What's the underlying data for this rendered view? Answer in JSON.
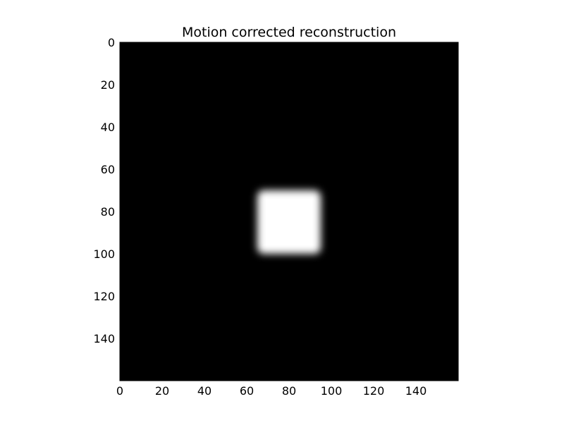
{
  "chart_data": {
    "type": "heatmap",
    "title": "Motion corrected reconstruction",
    "xlabel": "",
    "ylabel": "",
    "colormap": "gray",
    "image_shape": [
      160,
      160
    ],
    "xlim": [
      0,
      160
    ],
    "ylim": [
      160,
      0
    ],
    "x_ticks": [
      0,
      20,
      40,
      60,
      80,
      100,
      120,
      140
    ],
    "y_ticks": [
      0,
      20,
      40,
      60,
      80,
      100,
      120,
      140
    ],
    "grid": false,
    "background_value": 0.0,
    "bright_region": {
      "shape": "rounded-square",
      "x_range": [
        65,
        95
      ],
      "y_range": [
        70,
        100
      ],
      "peak_value": 1.0,
      "blur_sigma": 1.8
    },
    "colors": {
      "low": "#000000",
      "high": "#ffffff"
    }
  }
}
